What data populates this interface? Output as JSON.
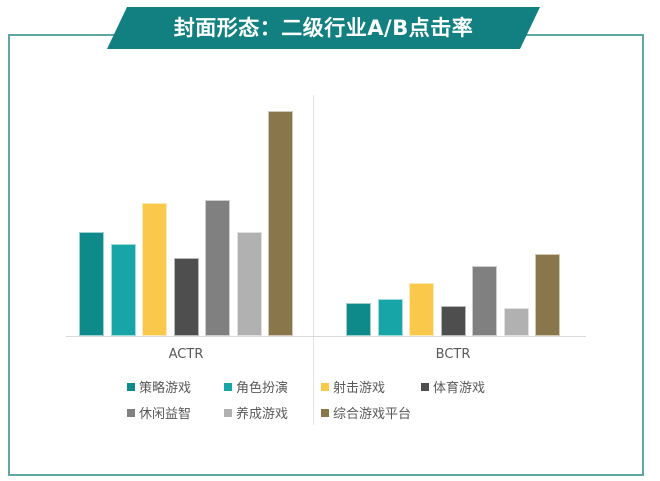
{
  "header": {
    "title": "封面形态：二级行业A/B点击率",
    "banner_color": "#127f80",
    "frame_color": "#5fa6a6"
  },
  "chart_data": {
    "type": "bar",
    "title": "封面形态：二级行业A/B点击率",
    "categories": [
      "ACTR",
      "BCTR"
    ],
    "xlabel": "",
    "ylabel": "",
    "grid": false,
    "legend_position": "bottom",
    "axis_note": "No y-axis ticks shown; values are relative bar heights (px above baseline)",
    "series": [
      {
        "name": "策略游戏",
        "color": "#0e8a8a",
        "values": [
          104,
          33
        ]
      },
      {
        "name": "角色扮演",
        "color": "#17a5a8",
        "values": [
          92,
          37
        ]
      },
      {
        "name": "射击游戏",
        "color": "#fac94c",
        "values": [
          133,
          53
        ]
      },
      {
        "name": "体育游戏",
        "color": "#4e4e4e",
        "values": [
          78,
          30
        ]
      },
      {
        "name": "休闲益智",
        "color": "#7f807f",
        "values": [
          136,
          70
        ]
      },
      {
        "name": "养成游戏",
        "color": "#b1b1b1",
        "values": [
          104,
          28
        ]
      },
      {
        "name": "综合游戏平台",
        "color": "#8a764b",
        "values": [
          225,
          82
        ]
      }
    ]
  },
  "legend": {
    "items": [
      {
        "label": "策略游戏",
        "color": "#0e8a8a"
      },
      {
        "label": "角色扮演",
        "color": "#17a5a8"
      },
      {
        "label": "射击游戏",
        "color": "#fac94c"
      },
      {
        "label": "体育游戏",
        "color": "#4e4e4e"
      },
      {
        "label": "休闲益智",
        "color": "#7f807f"
      },
      {
        "label": "养成游戏",
        "color": "#b1b1b1"
      },
      {
        "label": "综合游戏平台",
        "color": "#8a764b"
      }
    ]
  }
}
